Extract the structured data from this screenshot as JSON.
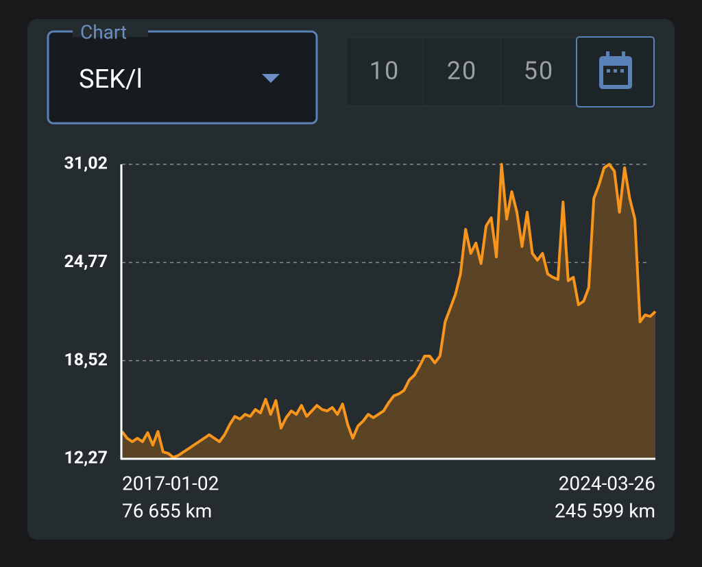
{
  "dropdown": {
    "label": "Chart",
    "value": "SEK/l"
  },
  "range_buttons": [
    "10",
    "20",
    "50"
  ],
  "chart_data": {
    "type": "area",
    "categories": [
      "2017-01-02",
      null,
      null,
      null,
      null,
      null,
      null,
      null,
      null,
      null,
      null,
      null,
      null,
      null,
      null,
      null,
      null,
      null,
      null,
      null,
      null,
      null,
      null,
      null,
      null,
      null,
      null,
      null,
      null,
      null,
      null,
      null,
      null,
      null,
      null,
      null,
      null,
      null,
      null,
      null,
      null,
      null,
      null,
      null,
      null,
      null,
      null,
      null,
      null,
      null,
      null,
      null,
      null,
      null,
      null,
      null,
      null,
      null,
      null,
      null,
      null,
      null,
      null,
      null,
      null,
      null,
      null,
      null,
      null,
      null,
      null,
      null,
      null,
      null,
      null,
      null,
      null,
      null,
      null,
      null,
      null,
      null,
      null,
      null,
      null,
      null,
      null,
      null,
      null,
      null,
      null,
      null,
      null,
      null,
      null,
      null,
      null,
      null,
      null,
      null,
      null,
      null,
      null,
      null,
      "2024-03-26"
    ],
    "distances": [
      "76 655 km",
      null,
      null,
      null,
      null,
      null,
      null,
      null,
      null,
      null,
      null,
      null,
      null,
      null,
      null,
      null,
      null,
      null,
      null,
      null,
      null,
      null,
      null,
      null,
      null,
      null,
      null,
      null,
      null,
      null,
      null,
      null,
      null,
      null,
      null,
      null,
      null,
      null,
      null,
      null,
      null,
      null,
      null,
      null,
      null,
      null,
      null,
      null,
      null,
      null,
      null,
      null,
      null,
      null,
      null,
      null,
      null,
      null,
      null,
      null,
      null,
      null,
      null,
      null,
      null,
      null,
      null,
      null,
      null,
      null,
      null,
      null,
      null,
      null,
      null,
      null,
      null,
      null,
      null,
      null,
      null,
      null,
      null,
      null,
      null,
      null,
      null,
      null,
      null,
      null,
      null,
      null,
      null,
      null,
      null,
      null,
      null,
      null,
      null,
      null,
      null,
      null,
      null,
      null,
      "245 599 km"
    ],
    "values": [
      14.01,
      13.58,
      13.36,
      13.58,
      13.36,
      13.93,
      13.14,
      14.01,
      12.71,
      12.62,
      12.36,
      12.49,
      12.71,
      12.92,
      13.14,
      13.36,
      13.58,
      13.8,
      13.58,
      13.36,
      13.8,
      14.45,
      14.97,
      14.8,
      15.1,
      14.97,
      15.41,
      15.19,
      16.06,
      15.1,
      15.98,
      14.23,
      14.89,
      15.32,
      15.1,
      15.67,
      14.97,
      15.32,
      15.67,
      15.41,
      15.32,
      15.54,
      15.1,
      15.76,
      14.45,
      13.58,
      14.36,
      14.67,
      15.1,
      14.89,
      15.1,
      15.32,
      15.85,
      16.28,
      16.41,
      16.63,
      17.29,
      17.59,
      18.16,
      18.81,
      18.81,
      18.38,
      18.81,
      20.99,
      21.86,
      22.74,
      24.04,
      26.88,
      25.35,
      26.01,
      24.7,
      27.1,
      27.62,
      25.13,
      31.02,
      27.53,
      29.28,
      27.97,
      25.79,
      27.97,
      25.35,
      24.92,
      25.35,
      24.04,
      23.83,
      23.69,
      28.62,
      23.61,
      23.83,
      22.08,
      22.3,
      23.17,
      28.84,
      29.71,
      30.8,
      31.02,
      30.58,
      27.97,
      30.8,
      28.84,
      27.53,
      20.99,
      21.43,
      21.34,
      21.65
    ],
    "color": "#f7951d",
    "fill_color": "#5a4425",
    "ylim": [
      12.27,
      31.02
    ],
    "yticks": [
      {
        "value": 12.27,
        "label": "12,27"
      },
      {
        "value": 18.52,
        "label": "18,52"
      },
      {
        "value": 24.77,
        "label": "24,77"
      },
      {
        "value": 31.02,
        "label": "31,02"
      }
    ],
    "grid": true
  }
}
